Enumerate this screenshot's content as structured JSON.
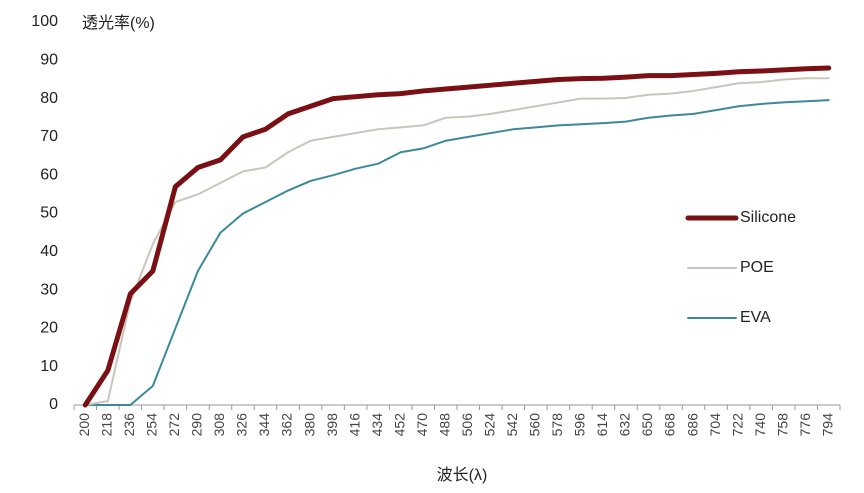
{
  "chart_data": {
    "type": "line",
    "y_label": "透光率(%)",
    "x_label": "波长(λ)",
    "categories": [
      "200",
      "218",
      "236",
      "254",
      "272",
      "290",
      "308",
      "326",
      "344",
      "362",
      "380",
      "398",
      "416",
      "434",
      "452",
      "470",
      "488",
      "506",
      "524",
      "542",
      "560",
      "578",
      "596",
      "614",
      "632",
      "650",
      "668",
      "686",
      "704",
      "722",
      "740",
      "758",
      "776",
      "794"
    ],
    "series": [
      {
        "name": "Silicone",
        "color": "#7a1014",
        "width": 5,
        "values": [
          0,
          9,
          29,
          35,
          57,
          62,
          64,
          70,
          72,
          76,
          78,
          80,
          80.5,
          81,
          81.3,
          82,
          82.5,
          83,
          83.5,
          84,
          84.5,
          85,
          85.2,
          85.3,
          85.6,
          86,
          86,
          86.3,
          86.6,
          87,
          87.2,
          87.5,
          87.8,
          88
        ]
      },
      {
        "name": "POE",
        "color": "#c9c5ba",
        "width": 2,
        "values": [
          0,
          1,
          27,
          42,
          53,
          55,
          58,
          61,
          62,
          66,
          69,
          70,
          71,
          72,
          72.5,
          73,
          75,
          75.3,
          76,
          77,
          78,
          79,
          80,
          80,
          80.2,
          81,
          81.3,
          82,
          83,
          84,
          84.3,
          85,
          85.3,
          85.3
        ]
      },
      {
        "name": "EVA",
        "color": "#3b8a9b",
        "width": 2,
        "values": [
          0,
          0,
          0,
          5,
          20,
          35,
          45,
          50,
          53,
          56,
          58.5,
          60,
          61.7,
          63,
          66,
          67,
          69,
          70,
          71,
          72,
          72.5,
          73,
          73.3,
          73.6,
          74,
          75,
          75.6,
          76,
          77,
          78,
          78.6,
          79,
          79.3,
          79.6
        ]
      }
    ],
    "ylim": [
      0,
      100
    ],
    "yticks": [
      0,
      10,
      20,
      30,
      40,
      50,
      60,
      70,
      80,
      90,
      100
    ],
    "legend": "right"
  }
}
